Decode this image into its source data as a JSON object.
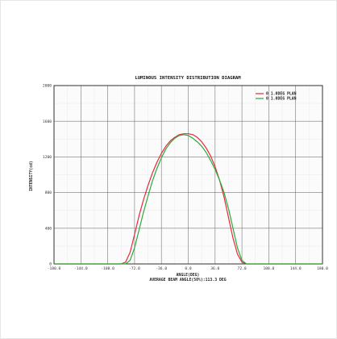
{
  "chart_data": {
    "type": "line",
    "title": "LUMINOUS INTENSITY DISTRIBUTION DIAGRAM",
    "xlabel": "ANGLE(DEG)",
    "ylabel": "INTENSITY(cd)",
    "footnote": "AVERAGE BEAM ANGLE(50%):113.3 DEG",
    "xlim": [
      -180,
      180
    ],
    "ylim": [
      0,
      2000
    ],
    "x_ticks": [
      -180,
      -144,
      -108,
      -72,
      -36,
      0,
      36,
      72,
      108,
      144,
      180
    ],
    "x_tick_labels": [
      "-180.0",
      "-144.0",
      "-108.0",
      "-72.0",
      "-36.0",
      "0.0",
      "36.0",
      "72.0",
      "108.0",
      "144.0",
      "180.0"
    ],
    "y_ticks": [
      0,
      400,
      800,
      1200,
      1600,
      2000
    ],
    "y_tick_labels": [
      "0",
      "400",
      "800",
      "1200",
      "1600",
      "2000"
    ],
    "grid": true,
    "legend_position": "top-right",
    "series": [
      {
        "name": "0 1.0DEG PLAN",
        "color": "#e8283c",
        "x": [
          -180,
          -90,
          -84,
          -78,
          -72,
          -66,
          -60,
          -54,
          -48,
          -42,
          -36,
          -30,
          -24,
          -18,
          -12,
          -6,
          0,
          6,
          12,
          18,
          24,
          30,
          36,
          42,
          48,
          54,
          60,
          66,
          72,
          78,
          84,
          90,
          180
        ],
        "y": [
          0,
          0,
          20,
          130,
          330,
          540,
          720,
          880,
          1020,
          1140,
          1240,
          1320,
          1380,
          1420,
          1450,
          1460,
          1460,
          1450,
          1420,
          1370,
          1300,
          1210,
          1090,
          940,
          750,
          520,
          290,
          110,
          20,
          0,
          0,
          0,
          0
        ]
      },
      {
        "name": "0 1.0DEG PLAN",
        "color": "#2aaa3a",
        "x": [
          -180,
          -90,
          -84,
          -78,
          -72,
          -66,
          -60,
          -54,
          -48,
          -42,
          -36,
          -30,
          -24,
          -18,
          -12,
          -6,
          0,
          6,
          12,
          18,
          24,
          30,
          36,
          42,
          48,
          54,
          60,
          66,
          72,
          78,
          84,
          90,
          180
        ],
        "y": [
          0,
          0,
          0,
          40,
          180,
          380,
          580,
          760,
          930,
          1070,
          1190,
          1290,
          1360,
          1410,
          1440,
          1450,
          1440,
          1410,
          1370,
          1320,
          1250,
          1160,
          1060,
          940,
          800,
          620,
          400,
          180,
          40,
          0,
          0,
          0,
          0
        ]
      }
    ]
  }
}
